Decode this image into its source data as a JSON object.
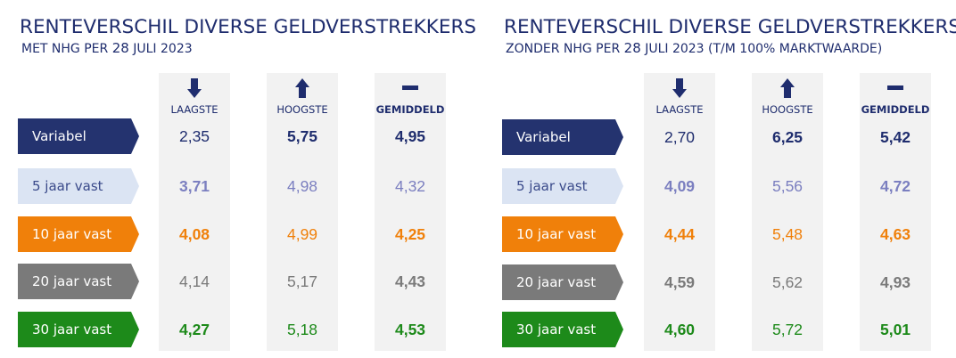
{
  "panels": [
    {
      "title": "RENTEVERSCHIL DIVERSE GELDVERSTREKKERS",
      "subtitle_prefix": "MET NHG PER ",
      "subtitle_day": "28",
      "subtitle_suffix": " JULI 2023",
      "columns": [
        {
          "label": "LAAGSTE",
          "icon": "arrow-down-icon"
        },
        {
          "label": "HOOGSTE",
          "icon": "arrow-up-icon"
        },
        {
          "label": "GEMIDDELD",
          "icon": "minus-icon"
        }
      ],
      "rows": [
        {
          "label": "Variabel",
          "values": [
            "2,35",
            "5,75",
            "4,95"
          ]
        },
        {
          "label": "5 jaar vast",
          "values": [
            "3,71",
            "4,98",
            "4,32"
          ]
        },
        {
          "label": "10 jaar vast",
          "values": [
            "4,08",
            "4,99",
            "4,25"
          ]
        },
        {
          "label": "20 jaar vast",
          "values": [
            "4,14",
            "5,17",
            "4,43"
          ]
        },
        {
          "label": "30 jaar vast",
          "values": [
            "4,27",
            "5,18",
            "4,53"
          ]
        }
      ]
    },
    {
      "title": "RENTEVERSCHIL DIVERSE GELDVERSTREKKERS",
      "subtitle_prefix": "ZONDER NHG PER ",
      "subtitle_day": "28",
      "subtitle_suffix": "  JULI 2023 (T/M 100% MARKTWAARDE)",
      "columns": [
        {
          "label": "LAAGSTE",
          "icon": "arrow-down-icon"
        },
        {
          "label": "HOOGSTE",
          "icon": "arrow-up-icon"
        },
        {
          "label": "GEMIDDELD",
          "icon": "minus-icon"
        }
      ],
      "rows": [
        {
          "label": "Variabel",
          "values": [
            "2,70",
            "6,25",
            "5,42"
          ]
        },
        {
          "label": "5 jaar vast",
          "values": [
            "4,09",
            "5,56",
            "4,72"
          ]
        },
        {
          "label": "10 jaar vast",
          "values": [
            "4,44",
            "5,48",
            "4,63"
          ]
        },
        {
          "label": "20 jaar vast",
          "values": [
            "4,59",
            "5,62",
            "4,93"
          ]
        },
        {
          "label": "30 jaar vast",
          "values": [
            "4,60",
            "5,72",
            "5,01"
          ]
        }
      ]
    }
  ],
  "colors": {
    "navy": "#1f2d6e",
    "variabel_bg": "#24336f",
    "variabel_text": "#ffffff",
    "vast5_bg": "#dbe4f3",
    "vast5_text": "#3a4a8a",
    "vast5_value": "#7b7fc0",
    "vast10_bg": "#f0800a",
    "vast10_text": "#ffffff",
    "vast10_value": "#f0800a",
    "vast20_bg": "#7a7a7a",
    "vast20_text": "#ffffff",
    "vast20_value": "#7a7a7a",
    "vast30_bg": "#1d8a1a",
    "vast30_text": "#ffffff",
    "vast30_value": "#1d8a1a"
  }
}
